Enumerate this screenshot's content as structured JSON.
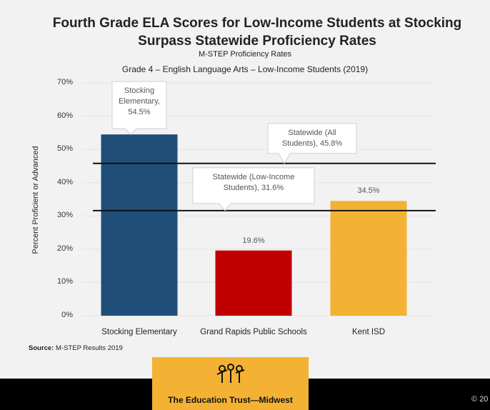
{
  "chart_data": {
    "type": "bar",
    "title": "Fourth Grade ELA Scores for Low-Income Students at Stocking Surpass Statewide Proficiency Rates",
    "subtitle": "M-STEP Proficiency Rates",
    "subtitle2": "Grade 4 – English Language Arts – Low-Income Students (2019)",
    "y_label": "Percent Proficient or Advanced",
    "categories": [
      "Stocking Elementary",
      "Grand Rapids Public Schools",
      "Kent ISD"
    ],
    "values": [
      54.5,
      19.6,
      34.5
    ],
    "value_labels": [
      "Stocking Elementary, 54.5%",
      "19.6%",
      "34.5%"
    ],
    "colors": [
      "#1f4e79",
      "#c00000",
      "#f4b234"
    ],
    "reference_lines": [
      {
        "label": "Statewide (All Students), 45.8%",
        "value": 45.8
      },
      {
        "label": "Statewide (Low-Income Students), 31.6%",
        "value": 31.6
      }
    ],
    "ylim": [
      0,
      70
    ],
    "yticks": [
      {
        "value": 0,
        "label": "0%"
      },
      {
        "value": 10,
        "label": "10%"
      },
      {
        "value": 20,
        "label": "20%"
      },
      {
        "value": 30,
        "label": "30%"
      },
      {
        "value": 40,
        "label": "40%"
      },
      {
        "value": 50,
        "label": "50%"
      },
      {
        "value": 60,
        "label": "60%"
      },
      {
        "value": 70,
        "label": "70%"
      }
    ],
    "grid": true,
    "source_label": "Source:",
    "source": "M-STEP Results 2019",
    "logo_text": "The Education Trust—Midwest",
    "copyright": "© 20"
  }
}
